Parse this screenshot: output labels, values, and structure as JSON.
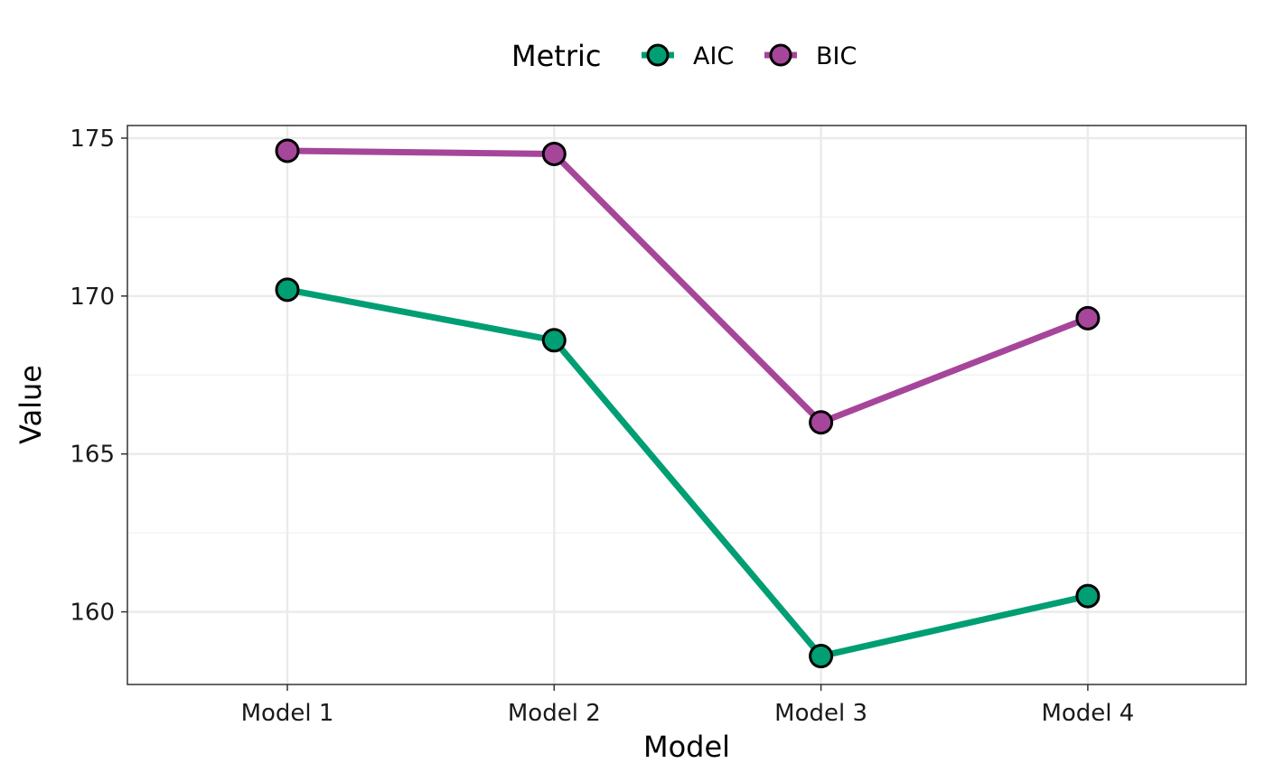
{
  "chart_data": {
    "type": "line",
    "title": "",
    "xlabel": "Model",
    "ylabel": "Value",
    "categories": [
      "Model 1",
      "Model 2",
      "Model 3",
      "Model 4"
    ],
    "y_ticks": [
      160,
      165,
      170,
      175
    ],
    "y_tick_labels": [
      "160",
      "165",
      "170",
      "175"
    ],
    "ylim": [
      157.7,
      175.4
    ],
    "grid": true,
    "legend": {
      "title": "Metric",
      "position": "top"
    },
    "series": [
      {
        "name": "AIC",
        "color": "#009E73",
        "values": [
          170.2,
          168.6,
          158.6,
          160.5
        ]
      },
      {
        "name": "BIC",
        "color": "#A6469A",
        "values": [
          174.6,
          174.5,
          166.0,
          169.3
        ]
      }
    ]
  }
}
